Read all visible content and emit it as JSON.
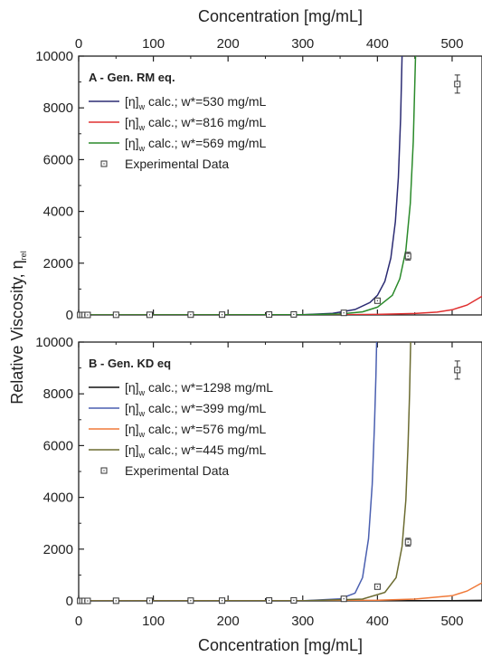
{
  "chart_data": {
    "type": "line",
    "x_axis_top_label": "Concentration [mg/mL]",
    "x_axis_bottom_label": "Concentration [mg/mL]",
    "y_axis_label": "Relative Viscosity, η",
    "y_axis_label_sub": "rel",
    "xlim": [
      0,
      540
    ],
    "x_ticks": [
      0,
      100,
      200,
      300,
      400,
      500
    ],
    "ylim": [
      0,
      10000
    ],
    "y_ticks": [
      0,
      2000,
      4000,
      6000,
      8000,
      10000
    ],
    "legend_item_prefix": "[η]",
    "legend_item_sub": "w",
    "experimental_label": "Experimental Data",
    "experimental_data": {
      "x": [
        2,
        5,
        8,
        12,
        50,
        95,
        150,
        192,
        255,
        288,
        355,
        400,
        441,
        507
      ],
      "y": [
        0,
        0,
        0,
        0,
        5,
        5,
        10,
        10,
        15,
        20,
        80,
        550,
        2270,
        8920
      ],
      "y_error": [
        0,
        0,
        0,
        0,
        0,
        0,
        0,
        0,
        0,
        0,
        30,
        60,
        150,
        350
      ]
    },
    "panels": [
      {
        "title": "A - Gen. RM eq.",
        "series": [
          {
            "name": " calc.; w*=530 mg/mL",
            "color": "#2b2b73",
            "x": [
              0,
              300,
              340,
              370,
              390,
              400,
              410,
              418,
              424,
              428,
              431,
              433
            ],
            "y": [
              1,
              10,
              60,
              210,
              480,
              760,
              1300,
              2200,
              3600,
              5300,
              7600,
              10000
            ]
          },
          {
            "name": " calc.; w*=816 mg/mL",
            "color": "#e03030",
            "x": [
              0,
              300,
              350,
              400,
              450,
              480,
              500,
              520,
              540
            ],
            "y": [
              1,
              3,
              8,
              20,
              55,
              110,
              200,
              380,
              720
            ]
          },
          {
            "name": " calc.; w*=569 mg/mL",
            "color": "#2a8a2a",
            "x": [
              0,
              300,
              350,
              380,
              400,
              420,
              430,
              438,
              444,
              448,
              451
            ],
            "y": [
              1,
              8,
              40,
              120,
              300,
              760,
              1400,
              2500,
              4300,
              6700,
              10000
            ]
          }
        ]
      },
      {
        "title": "B - Gen. KD eq",
        "series": [
          {
            "name": " calc.; w*=1298 mg/mL",
            "color": "#111111",
            "x": [
              0,
              300,
              400,
              450,
              500,
              540
            ],
            "y": [
              1,
              2,
              4,
              7,
              12,
              20
            ]
          },
          {
            "name": " calc.; w*=399 mg/mL",
            "color": "#4a5fb0",
            "x": [
              0,
              300,
              350,
              370,
              380,
              388,
              393,
              396,
              398,
              399
            ],
            "y": [
              1,
              5,
              80,
              300,
              900,
              2400,
              4500,
              6800,
              8700,
              10000
            ]
          },
          {
            "name": " calc.; w*=576 mg/mL",
            "color": "#f07a3a",
            "x": [
              0,
              300,
              400,
              450,
              500,
              520,
              540
            ],
            "y": [
              1,
              4,
              25,
              70,
              200,
              380,
              700
            ]
          },
          {
            "name": " calc.; w*=445 mg/mL",
            "color": "#6b6b30",
            "x": [
              0,
              300,
              380,
              410,
              425,
              433,
              438,
              441,
              443,
              444.5
            ],
            "y": [
              1,
              5,
              70,
              330,
              900,
              2100,
              3900,
              6000,
              8000,
              10000
            ]
          }
        ]
      }
    ]
  }
}
